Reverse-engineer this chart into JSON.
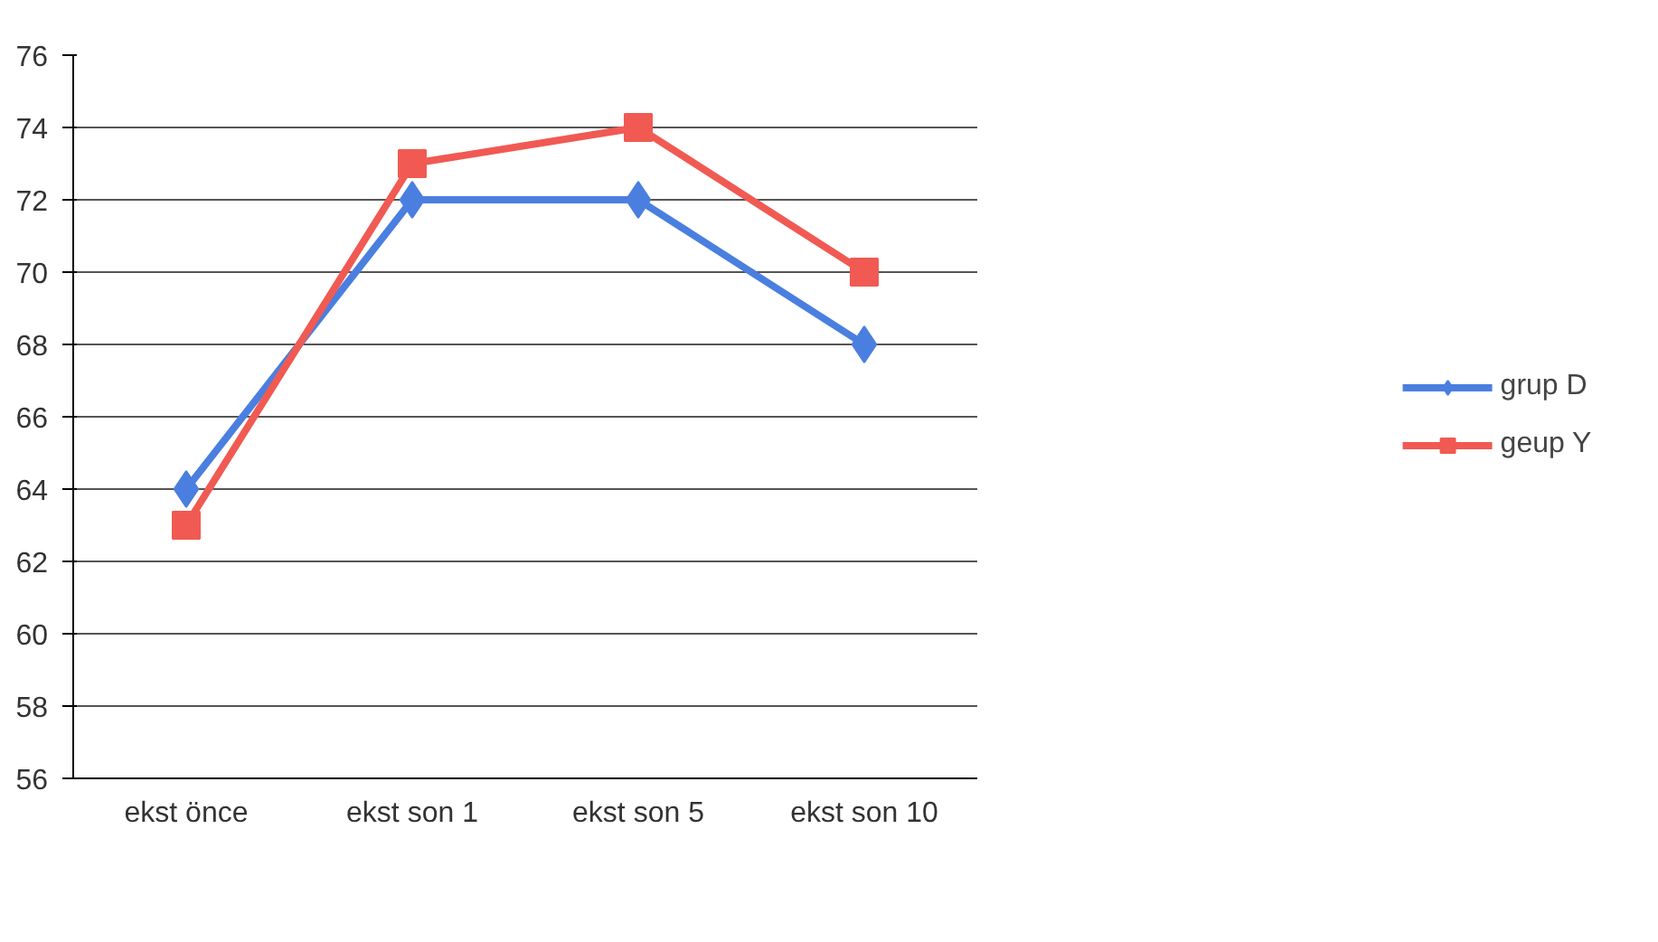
{
  "chart_data": {
    "type": "line",
    "categories": [
      "ekst önce",
      "ekst son 1",
      "ekst son 5",
      "ekst son 10"
    ],
    "series": [
      {
        "name": "grup D",
        "color": "#4a7fe0",
        "values": [
          64,
          72,
          72,
          68
        ],
        "marker": "diamond"
      },
      {
        "name": "geup Y",
        "color": "#f05a52",
        "values": [
          63,
          73,
          74,
          70
        ],
        "marker": "square"
      }
    ],
    "ylim": [
      56,
      76
    ],
    "yticks": [
      56,
      58,
      60,
      62,
      64,
      66,
      68,
      70,
      72,
      74,
      76
    ],
    "grid": "y",
    "legend": "right",
    "line_style": "solid"
  }
}
